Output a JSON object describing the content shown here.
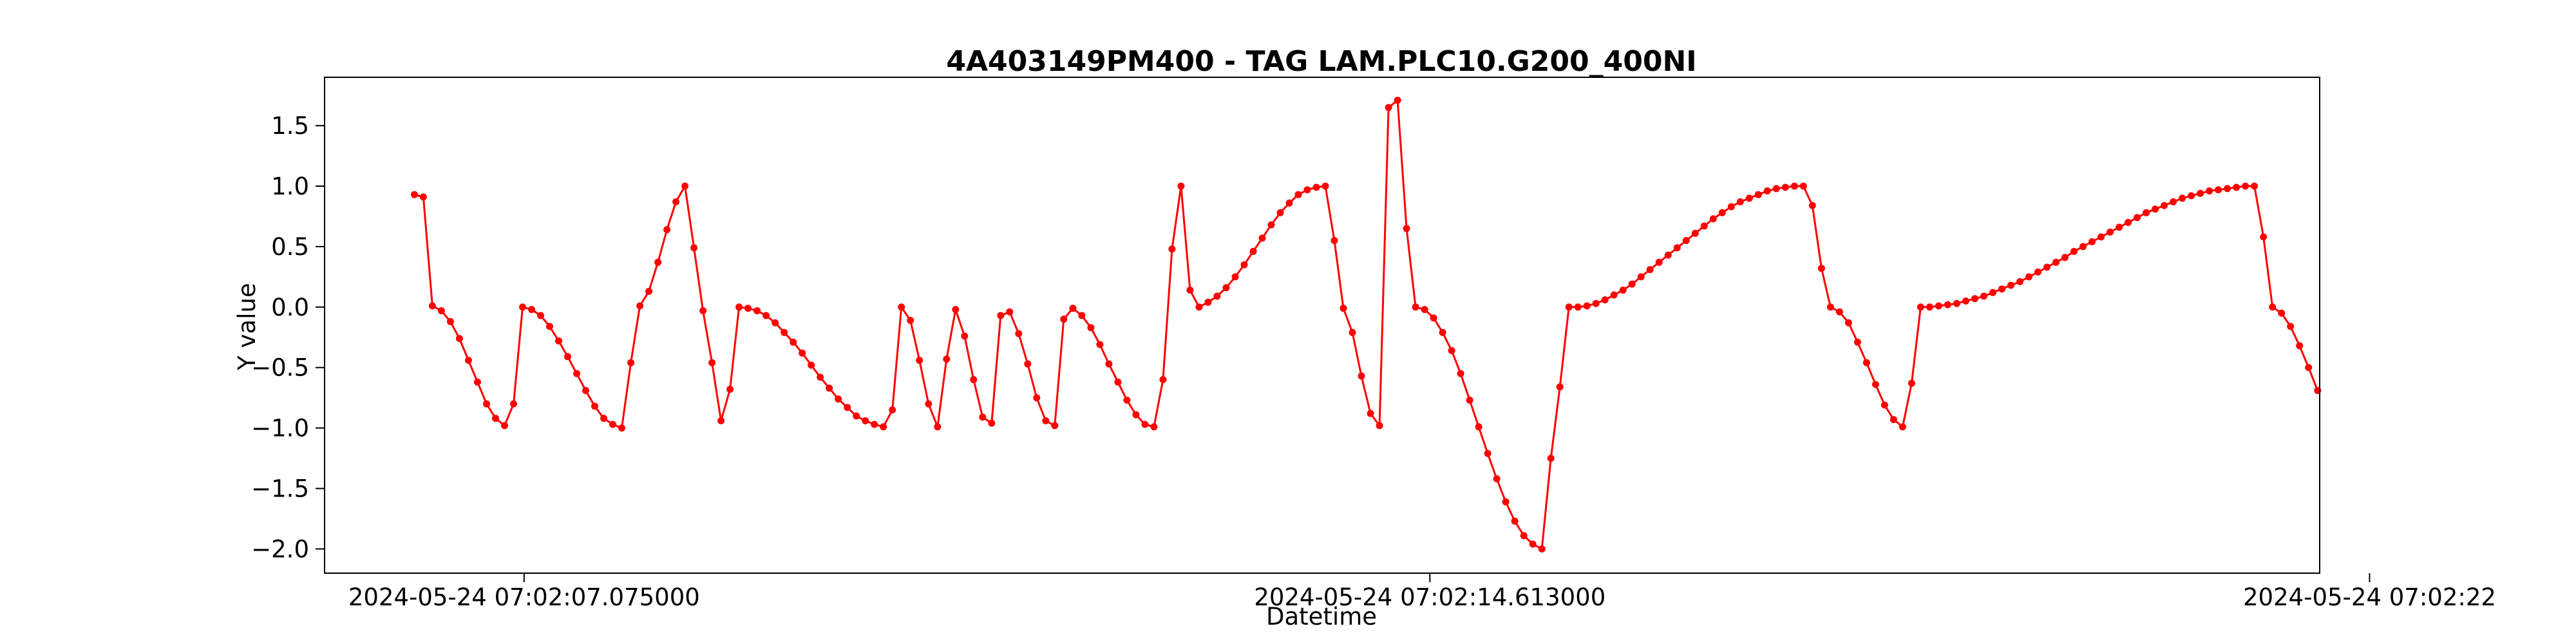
{
  "chart_data": {
    "type": "line",
    "title": "4A403149PM400 - TAG LAM.PLC10.G200_400NI",
    "xlabel": "Datetime",
    "ylabel": "Y value",
    "xlim": [
      0,
      20
    ],
    "ylim": [
      -2.2,
      1.9
    ],
    "x_ticks": [
      {
        "value": 2.0,
        "label": "2024-05-24 07:02:07.075000"
      },
      {
        "value": 11.08,
        "label": "2024-05-24 07:02:14.613000"
      },
      {
        "value": 20.5,
        "label": "2024-05-24 07:02:22"
      }
    ],
    "y_ticks": [
      {
        "value": 1.5,
        "label": "1.5"
      },
      {
        "value": 1.0,
        "label": "1.0"
      },
      {
        "value": 0.5,
        "label": "0.5"
      },
      {
        "value": 0.0,
        "label": "0.0"
      },
      {
        "value": -0.5,
        "label": "−0.5"
      },
      {
        "value": -1.0,
        "label": "−1.0"
      },
      {
        "value": -1.5,
        "label": "−1.5"
      },
      {
        "value": -2.0,
        "label": "−2.0"
      }
    ],
    "grid": false,
    "series": [
      {
        "name": "LAM.PLC10.G200_400NI",
        "color": "#ff0000",
        "marker": "circle",
        "x_start": 0.9,
        "x_step": 0.09042,
        "y": [
          0.93,
          0.91,
          0.01,
          -0.03,
          -0.12,
          -0.26,
          -0.44,
          -0.62,
          -0.8,
          -0.92,
          -0.98,
          -0.8,
          0.0,
          -0.02,
          -0.07,
          -0.16,
          -0.28,
          -0.41,
          -0.55,
          -0.69,
          -0.82,
          -0.92,
          -0.97,
          -1.0,
          -0.46,
          0.01,
          0.13,
          0.37,
          0.64,
          0.87,
          1.0,
          0.49,
          -0.03,
          -0.46,
          -0.94,
          -0.68,
          0.0,
          -0.01,
          -0.03,
          -0.07,
          -0.13,
          -0.21,
          -0.29,
          -0.38,
          -0.48,
          -0.58,
          -0.67,
          -0.76,
          -0.83,
          -0.9,
          -0.94,
          -0.97,
          -0.99,
          -0.85,
          0.0,
          -0.11,
          -0.44,
          -0.8,
          -0.99,
          -0.43,
          -0.02,
          -0.24,
          -0.6,
          -0.91,
          -0.96,
          -0.07,
          -0.04,
          -0.22,
          -0.47,
          -0.75,
          -0.94,
          -0.98,
          -0.1,
          -0.01,
          -0.07,
          -0.17,
          -0.31,
          -0.47,
          -0.62,
          -0.77,
          -0.89,
          -0.97,
          -0.99,
          -0.6,
          0.48,
          1.0,
          0.14,
          0.0,
          0.04,
          0.09,
          0.16,
          0.25,
          0.35,
          0.46,
          0.57,
          0.68,
          0.78,
          0.86,
          0.93,
          0.97,
          0.99,
          1.0,
          0.55,
          -0.01,
          -0.21,
          -0.57,
          -0.88,
          -0.98,
          1.65,
          1.71,
          0.65,
          0.0,
          -0.02,
          -0.09,
          -0.21,
          -0.36,
          -0.55,
          -0.77,
          -0.99,
          -1.21,
          -1.42,
          -1.61,
          -1.77,
          -1.89,
          -1.96,
          -2.0,
          -1.25,
          -0.66,
          0.0,
          0.0,
          0.01,
          0.03,
          0.06,
          0.1,
          0.14,
          0.19,
          0.25,
          0.31,
          0.37,
          0.43,
          0.49,
          0.55,
          0.61,
          0.67,
          0.73,
          0.78,
          0.83,
          0.87,
          0.9,
          0.93,
          0.96,
          0.98,
          0.99,
          1.0,
          1.0,
          0.84,
          0.32,
          0.0,
          -0.04,
          -0.13,
          -0.29,
          -0.46,
          -0.64,
          -0.81,
          -0.93,
          -0.99,
          -0.63,
          0.0,
          0.0,
          0.01,
          0.02,
          0.03,
          0.05,
          0.07,
          0.09,
          0.12,
          0.15,
          0.18,
          0.21,
          0.25,
          0.29,
          0.33,
          0.37,
          0.41,
          0.46,
          0.5,
          0.54,
          0.58,
          0.62,
          0.66,
          0.7,
          0.74,
          0.78,
          0.81,
          0.84,
          0.87,
          0.9,
          0.92,
          0.94,
          0.96,
          0.97,
          0.98,
          0.99,
          1.0,
          1.0,
          0.58,
          0.0,
          -0.05,
          -0.16,
          -0.32,
          -0.5,
          -0.69
        ]
      }
    ]
  }
}
